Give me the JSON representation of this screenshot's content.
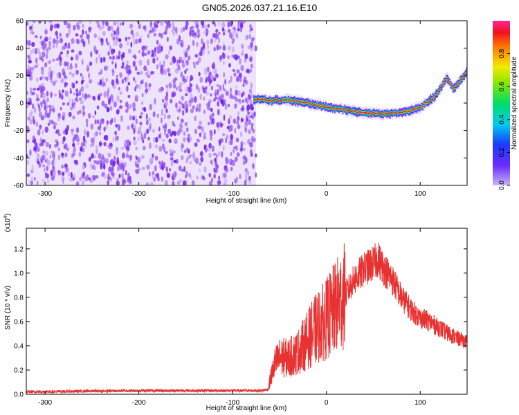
{
  "title": "GN05.2026.037.21.16.E10",
  "chart_data": [
    {
      "type": "heatmap",
      "xlabel": "Height of straight line (km)",
      "ylabel": "Frequency (Hz)",
      "xlim": [
        -320,
        150
      ],
      "ylim": [
        -60,
        60
      ],
      "x_ticks": [
        -300,
        -200,
        -100,
        0,
        100
      ],
      "y_ticks": [
        -60,
        -40,
        -20,
        0,
        20,
        40,
        60
      ],
      "noise_region_x": [
        -320,
        -75
      ],
      "signal_track": {
        "x": [
          -78,
          -60,
          -40,
          -20,
          0,
          20,
          40,
          60,
          80,
          100,
          115,
          128,
          135,
          142,
          150
        ],
        "y": [
          3,
          2,
          2,
          0,
          -3,
          -5,
          -7,
          -8,
          -7,
          -3,
          5,
          18,
          10,
          16,
          24
        ]
      },
      "colorbar": {
        "label": "Normalized spectral amplitude",
        "range": [
          0,
          1
        ],
        "ticks": [
          "0.0",
          "0.2",
          "0.4",
          "0.6",
          "0.8"
        ]
      }
    },
    {
      "type": "line",
      "xlabel": "Height of straight line (km)",
      "ylabel": "SNR (10 * v/v)",
      "multiplier": "(x10",
      "multiplier_exp": "4",
      "multiplier_close": ")",
      "xlim": [
        -320,
        150
      ],
      "ylim": [
        0,
        1.37
      ],
      "x_ticks": [
        -300,
        -200,
        -100,
        0,
        100
      ],
      "y_ticks": [
        "0.0",
        "0.2",
        "0.4",
        "0.6",
        "0.8",
        "1.0",
        "1.2"
      ],
      "series": [
        {
          "color": "#e83232",
          "x": [
            -320,
            -200,
            -100,
            -70,
            -62,
            -60,
            -55,
            -50,
            -40,
            -30,
            -20,
            -10,
            0,
            10,
            20,
            30,
            40,
            50,
            55,
            60,
            70,
            80,
            90,
            100,
            110,
            120,
            130,
            140,
            150
          ],
          "y": [
            0.02,
            0.03,
            0.03,
            0.03,
            0.04,
            0.12,
            0.25,
            0.3,
            0.3,
            0.35,
            0.45,
            0.55,
            0.62,
            0.72,
            0.82,
            0.95,
            1.03,
            1.08,
            1.12,
            1.05,
            0.95,
            0.8,
            0.7,
            0.63,
            0.6,
            0.55,
            0.5,
            0.46,
            0.43
          ]
        }
      ]
    }
  ]
}
